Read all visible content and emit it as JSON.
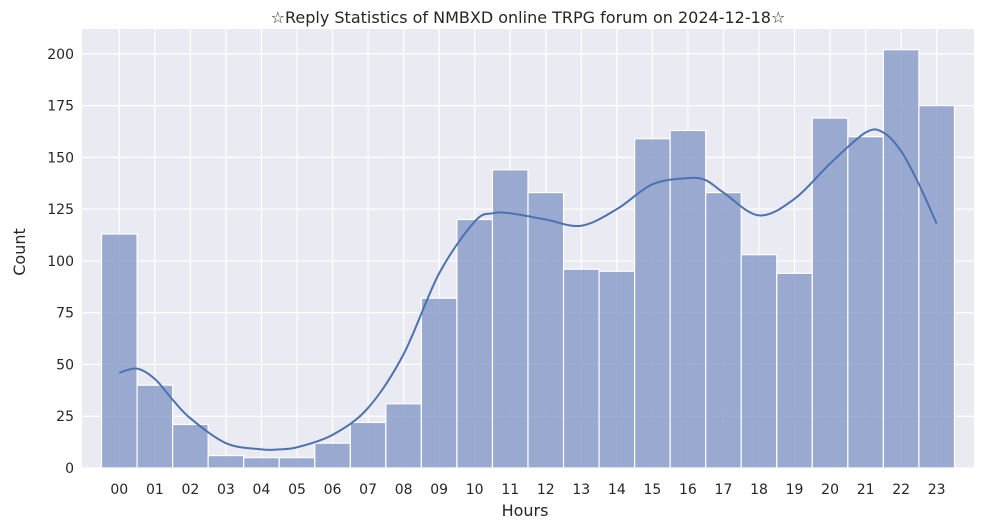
{
  "chart_data": {
    "type": "bar",
    "title": "☆Reply Statistics of NMBXD online TRPG forum on 2024-12-18☆",
    "xlabel": "Hours",
    "ylabel": "Count",
    "categories": [
      "00",
      "01",
      "02",
      "03",
      "04",
      "05",
      "06",
      "07",
      "08",
      "09",
      "10",
      "11",
      "12",
      "13",
      "14",
      "15",
      "16",
      "17",
      "18",
      "19",
      "20",
      "21",
      "22",
      "23"
    ],
    "values": [
      113,
      40,
      21,
      6,
      5,
      5,
      12,
      22,
      31,
      82,
      120,
      144,
      133,
      96,
      95,
      159,
      163,
      133,
      103,
      94,
      169,
      160,
      202,
      175
    ],
    "kde": {
      "x": [
        0,
        0.5,
        1,
        1.5,
        2,
        3,
        4,
        4.5,
        5,
        6,
        7,
        8,
        9,
        10,
        10.5,
        11,
        12,
        13,
        14,
        15,
        16,
        16.5,
        17,
        18,
        19,
        20,
        21,
        21.5,
        22,
        22.5,
        23
      ],
      "y": [
        46,
        48,
        43,
        33,
        24,
        12,
        9,
        9,
        10,
        16,
        29,
        55,
        94,
        119,
        123,
        123,
        120,
        117,
        125,
        137,
        140,
        139,
        133,
        122,
        130,
        147,
        162,
        162,
        153,
        137,
        118
      ]
    },
    "yticks": [
      0,
      25,
      50,
      75,
      100,
      125,
      150,
      175,
      200
    ],
    "ylim": [
      0,
      212
    ],
    "xlim": [
      -1.05,
      24.05
    ],
    "grid": true,
    "colors": {
      "bar": "#8196c5",
      "kde": "#4c72b0",
      "background": "#eaeaf2"
    }
  }
}
